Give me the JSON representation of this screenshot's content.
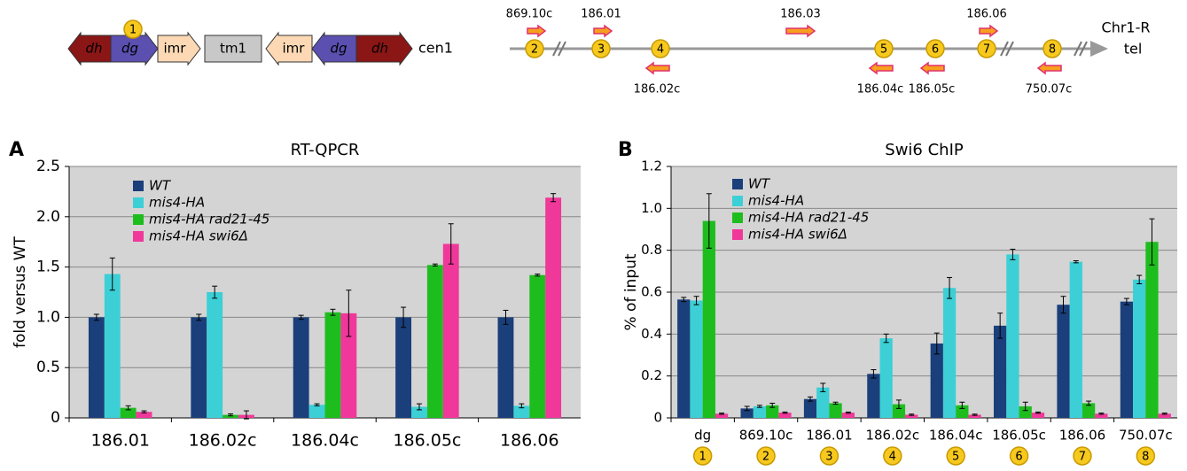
{
  "cen1_map": {
    "label": "cen1",
    "site": "1",
    "elements": [
      {
        "label": "dh",
        "color": "#8b1616"
      },
      {
        "label": "dg",
        "color": "#5b4fb0"
      },
      {
        "label": "imr",
        "color": "#fcd9b4"
      },
      {
        "label": "tm1",
        "color": "#c8c8c8"
      },
      {
        "label": "imr",
        "color": "#fcd9b4"
      },
      {
        "label": "dg",
        "color": "#5b4fb0"
      },
      {
        "label": "dh",
        "color": "#8b1616"
      }
    ]
  },
  "arm_map": {
    "label": "Chr1-R",
    "end_label": "tel",
    "genes": [
      {
        "name": "869.10c",
        "site": "2"
      },
      {
        "name": "186.01",
        "site": "3"
      },
      {
        "name": "186.02c",
        "site": "4"
      },
      {
        "name": "186.03"
      },
      {
        "name": "186.04c",
        "site": "5"
      },
      {
        "name": "186.05c",
        "site": "6"
      },
      {
        "name": "186.06",
        "site": "7"
      },
      {
        "name": "750.07c",
        "site": "8"
      }
    ]
  },
  "chart_data": [
    {
      "type": "bar",
      "panel": "A",
      "title": "RT-QPCR",
      "y_label": "fold versus WT",
      "categories": [
        "186.01",
        "186.02c",
        "186.04c",
        "186.05c",
        "186.06"
      ],
      "ylim": [
        0,
        2.5
      ],
      "yticks": [
        0,
        0.5,
        {
          "value": 1,
          "label": "1.0"
        },
        1.5,
        {
          "value": 2,
          "label": "2.0"
        },
        2.5
      ],
      "grid": true,
      "series": [
        {
          "name": "WT",
          "color": "#1a3f7a",
          "values": [
            1.0,
            1.0,
            1.0,
            1.0,
            1.0
          ],
          "errors": [
            0.03,
            0.03,
            0.02,
            0.1,
            0.07
          ]
        },
        {
          "name": "mis4-HA",
          "color": "#3ccfd6",
          "values": [
            1.43,
            1.25,
            0.13,
            0.11,
            0.12
          ],
          "errors": [
            0.16,
            0.06,
            0.01,
            0.03,
            0.02
          ]
        },
        {
          "name": "mis4-HA rad21-45",
          "color": "#1ebd1e",
          "values": [
            0.1,
            0.03,
            1.05,
            1.52,
            1.42
          ],
          "errors": [
            0.02,
            0.01,
            0.03,
            0.01,
            0.01
          ]
        },
        {
          "name": "mis4-HA swi6Δ",
          "color": "#f0389a",
          "values": [
            0.06,
            0.03,
            1.04,
            1.73,
            2.19
          ],
          "errors": [
            0.01,
            0.04,
            0.23,
            0.2,
            0.04
          ]
        }
      ]
    },
    {
      "type": "bar",
      "panel": "B",
      "title": "Swi6 ChIP",
      "y_label": "% of input",
      "categories": [
        "dg",
        "869.10c",
        "186.01",
        "186.02c",
        "186.04c",
        "186.05c",
        "186.06",
        "750.07c"
      ],
      "category_markers": [
        "1",
        "2",
        "3",
        "4",
        "5",
        "6",
        "7",
        "8"
      ],
      "ylim": [
        0,
        1.2
      ],
      "yticks": [
        0,
        0.2,
        0.4,
        0.6,
        0.8,
        {
          "value": 1,
          "label": "1.0"
        },
        1.2
      ],
      "grid": true,
      "series": [
        {
          "name": "WT",
          "color": "#1a3f7a",
          "values": [
            0.565,
            0.045,
            0.09,
            0.21,
            0.355,
            0.44,
            0.54,
            0.555
          ],
          "errors": [
            0.01,
            0.01,
            0.01,
            0.02,
            0.05,
            0.06,
            0.04,
            0.015
          ]
        },
        {
          "name": "mis4-HA",
          "color": "#3ccfd6",
          "values": [
            0.56,
            0.055,
            0.145,
            0.38,
            0.62,
            0.78,
            0.745,
            0.66
          ],
          "errors": [
            0.02,
            0.005,
            0.02,
            0.02,
            0.05,
            0.025,
            0.005,
            0.02
          ]
        },
        {
          "name": "mis4-HA rad21-45",
          "color": "#1ebd1e",
          "values": [
            0.94,
            0.06,
            0.07,
            0.065,
            0.06,
            0.055,
            0.07,
            0.84
          ],
          "errors": [
            0.13,
            0.01,
            0.005,
            0.02,
            0.015,
            0.02,
            0.01,
            0.11
          ]
        },
        {
          "name": "mis4-HA swi6Δ",
          "color": "#f0389a",
          "values": [
            0.02,
            0.025,
            0.025,
            0.015,
            0.015,
            0.025,
            0.02,
            0.02
          ],
          "errors": [
            0.003,
            0.003,
            0.003,
            0.003,
            0.003,
            0.003,
            0.003,
            0.003
          ]
        }
      ]
    }
  ]
}
